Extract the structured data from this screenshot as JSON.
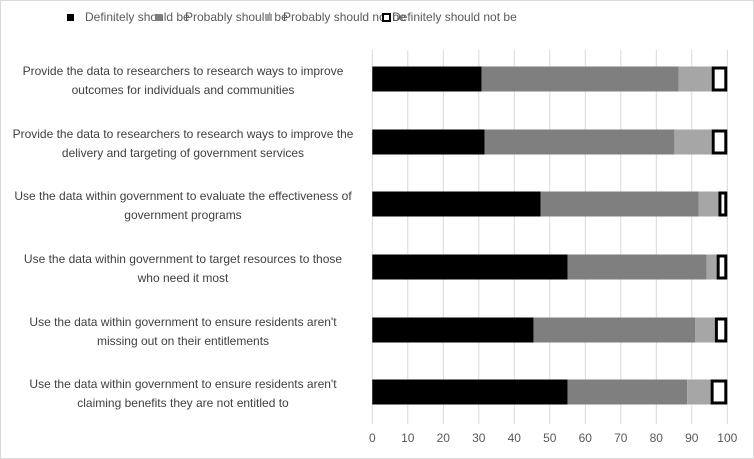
{
  "chart_data": {
    "type": "bar",
    "orientation": "horizontal",
    "stacked": true,
    "title": "",
    "xlabel": "",
    "ylabel": "",
    "xlim": [
      0,
      100
    ],
    "xticks": [
      0,
      10,
      20,
      30,
      40,
      50,
      60,
      70,
      80,
      90,
      100
    ],
    "grid": true,
    "legend_position": "top",
    "categories": [
      "Provide the data to researchers to research ways to improve outcomes for individuals and communities",
      "Provide the data to researchers to research ways to improve the delivery and targeting of government services",
      "Use the data within government to evaluate the effectiveness of government programs",
      "Use the data within government to target resources to those who need it most",
      "Use the data within government to ensure residents aren't missing out on their entitlements",
      "Use the data within government to ensure residents aren't claiming benefits they are not entitled to"
    ],
    "category_lines": [
      [
        "Provide the data to researchers to research ways to improve",
        "outcomes for individuals and communities"
      ],
      [
        "Provide the data to researchers to research ways to improve the",
        "delivery and targeting of government services"
      ],
      [
        "Use the data within government to evaluate the effectiveness of",
        "government programs"
      ],
      [
        "Use the data within government to target resources to those",
        "who need it most"
      ],
      [
        "Use the data within government to ensure residents aren't",
        "missing out on their entitlements"
      ],
      [
        "Use the data within government to ensure residents aren't",
        "claiming benefits they are not entitled to"
      ]
    ],
    "series": [
      {
        "name": "Definitely should be",
        "color": "#000000",
        "style": "filled",
        "values": [
          30.8,
          31.6,
          47.4,
          55.0,
          45.4,
          55.0
        ]
      },
      {
        "name": "Probably should be",
        "color": "#7f7f7f",
        "style": "filled",
        "values": [
          55.5,
          53.5,
          44.5,
          39.2,
          45.5,
          33.7
        ]
      },
      {
        "name": "Probably should not be",
        "color": "#a6a6a6",
        "style": "filled",
        "values": [
          9.3,
          10.5,
          5.6,
          2.8,
          5.6,
          6.6
        ]
      },
      {
        "name": "Definitely should not be",
        "color": "#ffffff",
        "style": "outlined",
        "outline": "#000000",
        "values": [
          4.4,
          4.4,
          2.5,
          3.0,
          3.5,
          4.7
        ]
      }
    ]
  }
}
